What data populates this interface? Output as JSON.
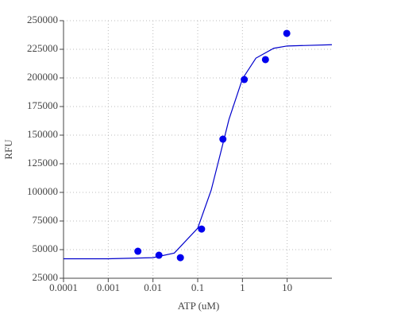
{
  "chart_data": {
    "type": "scatter",
    "x_label": "ATP (uM)",
    "y_label": "RFU",
    "log_x": true,
    "grid": true,
    "xlim": [
      0.0001,
      100
    ],
    "xticks": [
      0.0001,
      0.001,
      0.01,
      0.1,
      1,
      10
    ],
    "ylim": [
      25000,
      250000
    ],
    "yticks": [
      25000,
      50000,
      75000,
      100000,
      125000,
      150000,
      175000,
      200000,
      225000,
      250000
    ],
    "series": [
      {
        "type": "scatter",
        "color": "#0000ee",
        "x": [
          0.0046,
          0.0136,
          0.041,
          0.122,
          0.366,
          1.1,
          3.27,
          9.8
        ],
        "values": [
          48600,
          45100,
          43000,
          68000,
          146500,
          198600,
          216000,
          238900
        ]
      },
      {
        "type": "line",
        "color": "#0000cc",
        "x": [
          0.0001,
          0.001,
          0.01,
          0.03,
          0.1,
          0.2,
          0.33,
          0.5,
          1,
          2,
          5,
          10,
          100
        ],
        "values": [
          42000,
          42030,
          42980,
          46990,
          68700,
          101940,
          135500,
          163740,
          199150,
          217250,
          225880,
          227890,
          229000
        ]
      }
    ]
  }
}
